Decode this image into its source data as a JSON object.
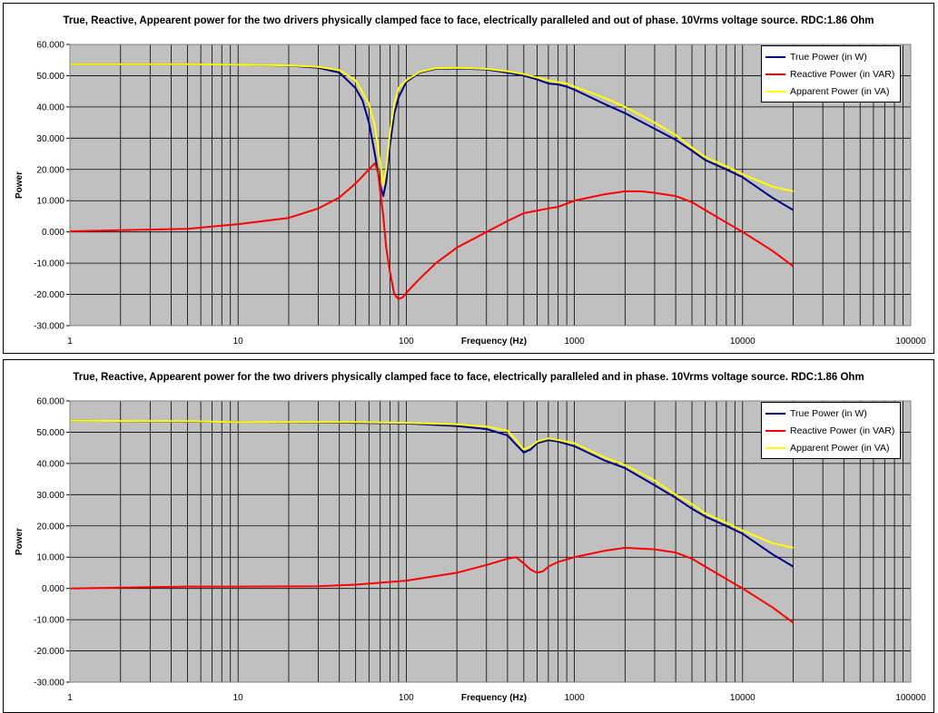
{
  "colors": {
    "plot_background": "#c0c0c0",
    "true_power": "#000080",
    "reactive_power": "#ff0000",
    "apparent_power": "#ffff00"
  },
  "chart_data": [
    {
      "type": "line",
      "title": "True, Reactive, Appearent power for the two drivers physically clamped face to face, electrically paralleled and out of phase. 10Vrms voltage source.  RDC:1.86 Ohm",
      "xlabel": "Frequency (Hz)",
      "ylabel": "Power",
      "x_scale": "log",
      "xlim": [
        1,
        100000
      ],
      "ylim": [
        -30,
        60
      ],
      "grid": true,
      "legend_position": "top-right",
      "x_tick_labels": [
        "1",
        "10",
        "100",
        "1000",
        "10000",
        "100000"
      ],
      "y_tick_labels": [
        "60.000",
        "50.000",
        "40.000",
        "30.000",
        "20.000",
        "10.000",
        "0.000",
        "-10.000",
        "-20.000",
        "-30.000"
      ],
      "series": [
        {
          "name": "True Power (in W)",
          "color": "#000080",
          "points": [
            [
              1,
              53.7
            ],
            [
              5,
              53.7
            ],
            [
              10,
              53.5
            ],
            [
              20,
              53.2
            ],
            [
              30,
              52.5
            ],
            [
              40,
              51
            ],
            [
              50,
              46
            ],
            [
              55,
              42
            ],
            [
              60,
              35
            ],
            [
              65,
              25
            ],
            [
              70,
              15
            ],
            [
              73,
              11.5
            ],
            [
              76,
              16
            ],
            [
              80,
              28
            ],
            [
              85,
              38
            ],
            [
              90,
              43
            ],
            [
              100,
              48
            ],
            [
              120,
              51
            ],
            [
              150,
              52.2
            ],
            [
              200,
              52.3
            ],
            [
              300,
              52
            ],
            [
              400,
              51
            ],
            [
              500,
              50
            ],
            [
              600,
              48.8
            ],
            [
              700,
              47.5
            ],
            [
              800,
              47.2
            ],
            [
              900,
              46.5
            ],
            [
              1000,
              45.5
            ],
            [
              1500,
              41
            ],
            [
              2000,
              38
            ],
            [
              3000,
              33
            ],
            [
              4000,
              29.5
            ],
            [
              5000,
              26
            ],
            [
              6000,
              23
            ],
            [
              8000,
              20
            ],
            [
              10000,
              17.5
            ],
            [
              15000,
              11
            ],
            [
              20000,
              7
            ]
          ]
        },
        {
          "name": "Reactive Power (in VAR)",
          "color": "#ff0000",
          "points": [
            [
              1,
              0.2
            ],
            [
              5,
              1
            ],
            [
              10,
              2.5
            ],
            [
              20,
              4.5
            ],
            [
              30,
              7.5
            ],
            [
              40,
              11
            ],
            [
              50,
              15.5
            ],
            [
              60,
              20
            ],
            [
              65,
              22
            ],
            [
              68,
              19
            ],
            [
              70,
              13
            ],
            [
              73,
              5
            ],
            [
              76,
              -5
            ],
            [
              80,
              -13
            ],
            [
              85,
              -20
            ],
            [
              90,
              -21.5
            ],
            [
              95,
              -21
            ],
            [
              100,
              -19.5
            ],
            [
              120,
              -15
            ],
            [
              150,
              -10
            ],
            [
              200,
              -5
            ],
            [
              300,
              0
            ],
            [
              400,
              3.5
            ],
            [
              500,
              6
            ],
            [
              700,
              7.5
            ],
            [
              800,
              8
            ],
            [
              1000,
              10
            ],
            [
              1500,
              12
            ],
            [
              2000,
              13
            ],
            [
              2500,
              13
            ],
            [
              3000,
              12.5
            ],
            [
              4000,
              11.5
            ],
            [
              5000,
              9.5
            ],
            [
              6000,
              7
            ],
            [
              8000,
              3
            ],
            [
              10000,
              0
            ],
            [
              15000,
              -6
            ],
            [
              20000,
              -11
            ]
          ]
        },
        {
          "name": "Apparent Power (in VA)",
          "color": "#ffff00",
          "points": [
            [
              1,
              53.7
            ],
            [
              5,
              53.7
            ],
            [
              10,
              53.5
            ],
            [
              20,
              53.3
            ],
            [
              30,
              52.8
            ],
            [
              40,
              51.8
            ],
            [
              50,
              48.5
            ],
            [
              60,
              41
            ],
            [
              65,
              34
            ],
            [
              70,
              22
            ],
            [
              73,
              15
            ],
            [
              76,
              20
            ],
            [
              80,
              32
            ],
            [
              85,
              41
            ],
            [
              90,
              46
            ],
            [
              100,
              48.5
            ],
            [
              120,
              51.2
            ],
            [
              150,
              52.4
            ],
            [
              200,
              52.5
            ],
            [
              300,
              52.2
            ],
            [
              400,
              51.4
            ],
            [
              500,
              50.5
            ],
            [
              700,
              48.5
            ],
            [
              900,
              47.5
            ],
            [
              1000,
              46.5
            ],
            [
              1500,
              43
            ],
            [
              2000,
              40
            ],
            [
              3000,
              35
            ],
            [
              4000,
              31
            ],
            [
              5000,
              27
            ],
            [
              6000,
              24
            ],
            [
              8000,
              21
            ],
            [
              10000,
              18.5
            ],
            [
              15000,
              14.5
            ],
            [
              20000,
              13
            ]
          ]
        }
      ]
    },
    {
      "type": "line",
      "title": "True, Reactive, Appearent power for the two drivers physically clamped face to face, electrically paralleled  and in phase. 10Vrms voltage source.  RDC:1.86 Ohm",
      "xlabel": "Frequency (Hz)",
      "ylabel": "Power",
      "x_scale": "log",
      "xlim": [
        1,
        100000
      ],
      "ylim": [
        -30,
        60
      ],
      "grid": true,
      "legend_position": "top-right",
      "x_tick_labels": [
        "1",
        "10",
        "100",
        "1000",
        "10000",
        "100000"
      ],
      "y_tick_labels": [
        "60.000",
        "50.000",
        "40.000",
        "30.000",
        "20.000",
        "10.000",
        "0.000",
        "-10.000",
        "-20.000",
        "-30.000"
      ],
      "series": [
        {
          "name": "True Power (in W)",
          "color": "#000080",
          "points": [
            [
              1,
              53.7
            ],
            [
              5,
              53.4
            ],
            [
              10,
              53.2
            ],
            [
              50,
              53
            ],
            [
              100,
              52.8
            ],
            [
              200,
              52
            ],
            [
              300,
              51
            ],
            [
              400,
              49
            ],
            [
              450,
              46
            ],
            [
              500,
              43.5
            ],
            [
              550,
              44.5
            ],
            [
              600,
              46.5
            ],
            [
              700,
              47.5
            ],
            [
              800,
              47
            ],
            [
              1000,
              45.5
            ],
            [
              1500,
              41
            ],
            [
              2000,
              38.5
            ],
            [
              3000,
              33
            ],
            [
              4000,
              29
            ],
            [
              5000,
              25.5
            ],
            [
              6000,
              23
            ],
            [
              8000,
              20
            ],
            [
              10000,
              17.5
            ],
            [
              15000,
              11
            ],
            [
              20000,
              7
            ]
          ]
        },
        {
          "name": "Reactive Power (in VAR)",
          "color": "#ff0000",
          "points": [
            [
              1,
              0
            ],
            [
              5,
              0.6
            ],
            [
              10,
              0.6
            ],
            [
              30,
              0.7
            ],
            [
              50,
              1.2
            ],
            [
              100,
              2.5
            ],
            [
              200,
              5
            ],
            [
              300,
              7.5
            ],
            [
              400,
              9.5
            ],
            [
              450,
              10
            ],
            [
              500,
              8
            ],
            [
              550,
              6
            ],
            [
              600,
              5
            ],
            [
              650,
              5.5
            ],
            [
              700,
              7
            ],
            [
              800,
              8.5
            ],
            [
              1000,
              10
            ],
            [
              1500,
              12
            ],
            [
              2000,
              13
            ],
            [
              3000,
              12.5
            ],
            [
              4000,
              11.5
            ],
            [
              5000,
              9.5
            ],
            [
              6000,
              7
            ],
            [
              8000,
              3
            ],
            [
              10000,
              0
            ],
            [
              15000,
              -6
            ],
            [
              20000,
              -11
            ]
          ]
        },
        {
          "name": "Apparent Power (in VA)",
          "color": "#ffff00",
          "points": [
            [
              1,
              53.7
            ],
            [
              5,
              53.5
            ],
            [
              10,
              53.2
            ],
            [
              50,
              53.2
            ],
            [
              100,
              53
            ],
            [
              200,
              52.5
            ],
            [
              300,
              51.8
            ],
            [
              400,
              50.5
            ],
            [
              450,
              47.5
            ],
            [
              500,
              44.5
            ],
            [
              550,
              45.5
            ],
            [
              600,
              47
            ],
            [
              700,
              48
            ],
            [
              800,
              47.5
            ],
            [
              1000,
              46.5
            ],
            [
              1500,
              42
            ],
            [
              2000,
              39.5
            ],
            [
              3000,
              34.5
            ],
            [
              4000,
              30
            ],
            [
              5000,
              27
            ],
            [
              6000,
              24
            ],
            [
              8000,
              21
            ],
            [
              10000,
              18.5
            ],
            [
              15000,
              14.5
            ],
            [
              20000,
              13
            ]
          ]
        }
      ]
    }
  ]
}
